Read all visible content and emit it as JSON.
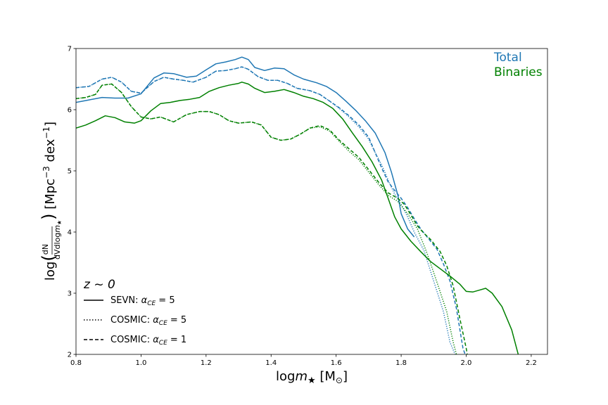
{
  "chart_data": {
    "type": "line",
    "xlabel": "logm★ [M⊙]",
    "ylabel": "log(dN/(dVdlogm★)) [Mpc⁻³ dex⁻¹]",
    "xlim": [
      0.8,
      2.25
    ],
    "ylim": [
      2,
      7
    ],
    "xticks": [
      0.8,
      1.0,
      1.2,
      1.4,
      1.6,
      1.8,
      2.0,
      2.2
    ],
    "xtick_labels": [
      "0.8",
      "1.0",
      "1.2",
      "1.4",
      "1.6",
      "1.8",
      "2.0",
      "2.2"
    ],
    "yticks": [
      2,
      3,
      4,
      5,
      6,
      7
    ],
    "ytick_labels": [
      "2",
      "3",
      "4",
      "5",
      "6",
      "7"
    ],
    "grid": false,
    "annotations": {
      "redshift": "z ~ 0",
      "total": "Total",
      "binaries": "Binaries"
    },
    "colors": {
      "total": "#1f77b4",
      "binaries": "#008000"
    },
    "legend": {
      "position": "lower-left",
      "entries": [
        {
          "label": "SEVN: α_CE = 5",
          "style": "solid"
        },
        {
          "label": "COSMIC: α_CE = 5",
          "style": "dotted"
        },
        {
          "label": "COSMIC: α_CE = 1",
          "style": "dashed"
        }
      ]
    },
    "series": [
      {
        "group": "Total",
        "model": "SEVN: α_CE = 5",
        "color": "#1f77b4",
        "style": "solid",
        "x": [
          0.8,
          0.84,
          0.88,
          0.92,
          0.96,
          1.0,
          1.04,
          1.07,
          1.1,
          1.14,
          1.17,
          1.2,
          1.23,
          1.26,
          1.29,
          1.31,
          1.33,
          1.35,
          1.38,
          1.41,
          1.44,
          1.47,
          1.5,
          1.54,
          1.57,
          1.6,
          1.63,
          1.66,
          1.69,
          1.72,
          1.75,
          1.77,
          1.79,
          1.8,
          1.82,
          1.84
        ],
        "y": [
          6.12,
          6.16,
          6.2,
          6.19,
          6.19,
          6.26,
          6.52,
          6.6,
          6.59,
          6.53,
          6.55,
          6.65,
          6.75,
          6.78,
          6.82,
          6.86,
          6.82,
          6.69,
          6.64,
          6.68,
          6.67,
          6.57,
          6.5,
          6.44,
          6.38,
          6.28,
          6.14,
          5.99,
          5.82,
          5.62,
          5.3,
          4.98,
          4.6,
          4.3,
          4.05,
          3.92
        ]
      },
      {
        "group": "Total",
        "model": "COSMIC: α_CE = 5",
        "color": "#1f77b4",
        "style": "dotted",
        "x": [
          0.8,
          0.84,
          0.88,
          0.91,
          0.94,
          0.97,
          1.0,
          1.04,
          1.07,
          1.1,
          1.13,
          1.16,
          1.2,
          1.23,
          1.26,
          1.29,
          1.31,
          1.33,
          1.36,
          1.39,
          1.42,
          1.45,
          1.48,
          1.52,
          1.55,
          1.58,
          1.61,
          1.64,
          1.67,
          1.7,
          1.72,
          1.74,
          1.76,
          1.78,
          1.8,
          1.82,
          1.84,
          1.87,
          1.9,
          1.93,
          1.95,
          1.97,
          1.99
        ],
        "y": [
          6.36,
          6.38,
          6.5,
          6.53,
          6.45,
          6.3,
          6.27,
          6.46,
          6.53,
          6.5,
          6.48,
          6.45,
          6.53,
          6.63,
          6.64,
          6.67,
          6.7,
          6.66,
          6.54,
          6.48,
          6.48,
          6.43,
          6.35,
          6.31,
          6.25,
          6.14,
          6.02,
          5.88,
          5.72,
          5.52,
          5.3,
          5.1,
          4.85,
          4.62,
          4.45,
          4.25,
          4.0,
          3.7,
          3.2,
          2.7,
          2.2,
          1.95,
          1.8
        ]
      },
      {
        "group": "Total",
        "model": "COSMIC: α_CE = 1",
        "color": "#1f77b4",
        "style": "dashed",
        "x": [
          0.8,
          0.84,
          0.88,
          0.91,
          0.94,
          0.97,
          1.0,
          1.04,
          1.07,
          1.1,
          1.13,
          1.16,
          1.2,
          1.23,
          1.26,
          1.29,
          1.31,
          1.33,
          1.36,
          1.39,
          1.42,
          1.45,
          1.48,
          1.52,
          1.55,
          1.58,
          1.61,
          1.64,
          1.67,
          1.7,
          1.72,
          1.74,
          1.76,
          1.78,
          1.8,
          1.82,
          1.84,
          1.86,
          1.88,
          1.91,
          1.93,
          1.95,
          1.97,
          1.99,
          2.01
        ],
        "y": [
          6.36,
          6.38,
          6.5,
          6.53,
          6.45,
          6.3,
          6.27,
          6.46,
          6.53,
          6.5,
          6.48,
          6.45,
          6.53,
          6.63,
          6.64,
          6.67,
          6.7,
          6.66,
          6.54,
          6.48,
          6.48,
          6.43,
          6.35,
          6.31,
          6.25,
          6.14,
          6.03,
          5.9,
          5.75,
          5.55,
          5.3,
          5.05,
          4.82,
          4.68,
          4.55,
          4.4,
          4.22,
          4.05,
          3.92,
          3.72,
          3.48,
          3.2,
          2.75,
          2.1,
          1.8
        ]
      },
      {
        "group": "Binaries",
        "model": "SEVN: α_CE = 5",
        "color": "#008000",
        "style": "solid",
        "x": [
          0.8,
          0.83,
          0.86,
          0.89,
          0.92,
          0.95,
          0.98,
          1.0,
          1.03,
          1.06,
          1.09,
          1.12,
          1.15,
          1.18,
          1.21,
          1.24,
          1.27,
          1.3,
          1.31,
          1.33,
          1.35,
          1.38,
          1.41,
          1.44,
          1.47,
          1.5,
          1.53,
          1.56,
          1.59,
          1.62,
          1.65,
          1.68,
          1.71,
          1.74,
          1.76,
          1.78,
          1.8,
          1.83,
          1.86,
          1.89,
          1.92,
          1.95,
          1.98,
          2.0,
          2.02,
          2.04,
          2.06,
          2.08,
          2.11,
          2.14,
          2.16
        ],
        "y": [
          5.7,
          5.75,
          5.82,
          5.9,
          5.87,
          5.8,
          5.78,
          5.82,
          5.98,
          6.1,
          6.12,
          6.15,
          6.17,
          6.2,
          6.3,
          6.36,
          6.4,
          6.43,
          6.45,
          6.42,
          6.35,
          6.28,
          6.3,
          6.33,
          6.28,
          6.22,
          6.18,
          6.12,
          6.02,
          5.85,
          5.62,
          5.4,
          5.15,
          4.85,
          4.55,
          4.25,
          4.05,
          3.85,
          3.68,
          3.52,
          3.4,
          3.28,
          3.15,
          3.03,
          3.02,
          3.05,
          3.08,
          3.0,
          2.78,
          2.4,
          2.0
        ]
      },
      {
        "group": "Binaries",
        "model": "COSMIC: α_CE = 5",
        "color": "#008000",
        "style": "dotted",
        "x": [
          0.8,
          0.83,
          0.86,
          0.88,
          0.91,
          0.94,
          0.97,
          1.0,
          1.03,
          1.06,
          1.1,
          1.14,
          1.18,
          1.21,
          1.24,
          1.27,
          1.3,
          1.34,
          1.37,
          1.4,
          1.43,
          1.46,
          1.49,
          1.52,
          1.55,
          1.58,
          1.61,
          1.64,
          1.67,
          1.7,
          1.73,
          1.76,
          1.79,
          1.82,
          1.85,
          1.88,
          1.91,
          1.94,
          1.96,
          1.98
        ],
        "y": [
          6.18,
          6.2,
          6.25,
          6.4,
          6.42,
          6.28,
          6.05,
          5.88,
          5.85,
          5.88,
          5.8,
          5.92,
          5.97,
          5.97,
          5.92,
          5.82,
          5.78,
          5.8,
          5.75,
          5.55,
          5.5,
          5.52,
          5.6,
          5.7,
          5.72,
          5.65,
          5.48,
          5.32,
          5.18,
          4.98,
          4.78,
          4.6,
          4.5,
          4.3,
          4.05,
          3.65,
          3.18,
          2.7,
          2.2,
          1.8
        ]
      },
      {
        "group": "Binaries",
        "model": "COSMIC: α_CE = 1",
        "color": "#008000",
        "style": "dashed",
        "x": [
          0.8,
          0.83,
          0.86,
          0.88,
          0.91,
          0.94,
          0.97,
          1.0,
          1.03,
          1.06,
          1.1,
          1.14,
          1.18,
          1.21,
          1.24,
          1.27,
          1.3,
          1.34,
          1.37,
          1.4,
          1.43,
          1.46,
          1.49,
          1.52,
          1.55,
          1.58,
          1.61,
          1.64,
          1.67,
          1.7,
          1.73,
          1.76,
          1.79,
          1.81,
          1.83,
          1.85,
          1.87,
          1.89,
          1.92,
          1.94,
          1.96,
          1.98,
          2.0,
          2.01
        ],
        "y": [
          6.18,
          6.2,
          6.25,
          6.4,
          6.42,
          6.28,
          6.05,
          5.88,
          5.85,
          5.88,
          5.8,
          5.92,
          5.97,
          5.97,
          5.92,
          5.82,
          5.78,
          5.8,
          5.75,
          5.55,
          5.5,
          5.52,
          5.6,
          5.7,
          5.74,
          5.67,
          5.5,
          5.36,
          5.22,
          5.02,
          4.82,
          4.64,
          4.55,
          4.45,
          4.28,
          4.1,
          3.98,
          3.88,
          3.68,
          3.45,
          3.12,
          2.6,
          2.1,
          1.8
        ]
      }
    ]
  }
}
